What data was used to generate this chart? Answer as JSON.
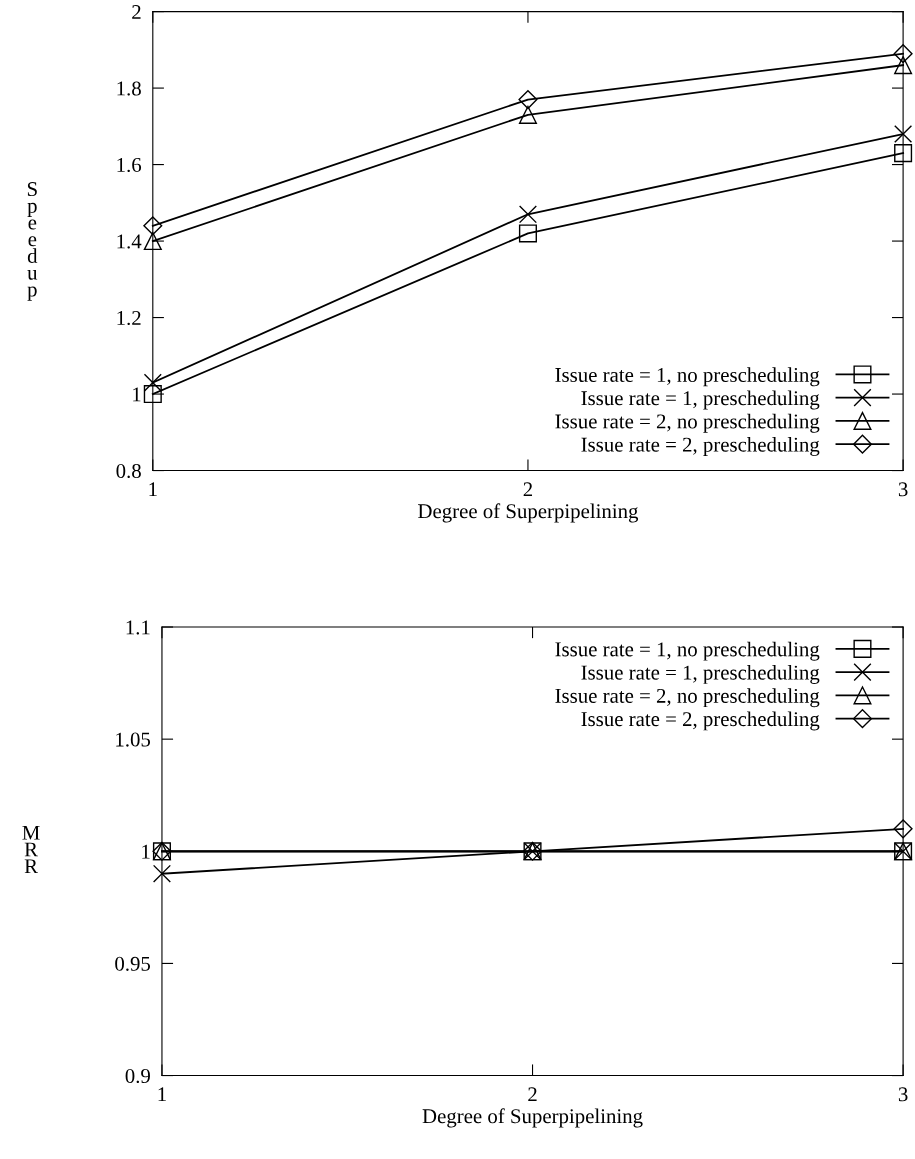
{
  "chart_data": [
    {
      "type": "line",
      "xlabel": "Degree of Superpipelining",
      "ylabel": "Speedup",
      "x": [
        1,
        2,
        3
      ],
      "xlim": [
        1,
        3
      ],
      "xticks": [
        1,
        2,
        3
      ],
      "ylim": [
        0.8,
        2
      ],
      "yticks": [
        0.8,
        1,
        1.2,
        1.4,
        1.6,
        1.8,
        2
      ],
      "grid": false,
      "legend": "bottom right",
      "series": [
        {
          "name": "Issue rate = 1, no prescheduling",
          "color": "#000000",
          "marker": "square",
          "values": [
            1.0,
            1.42,
            1.63
          ]
        },
        {
          "name": "Issue rate = 1, prescheduling",
          "color": "#000000",
          "marker": "cross",
          "values": [
            1.03,
            1.47,
            1.68
          ]
        },
        {
          "name": "Issue rate = 2, no prescheduling",
          "color": "#000000",
          "marker": "triangle",
          "values": [
            1.4,
            1.73,
            1.86
          ]
        },
        {
          "name": "Issue rate = 2, prescheduling",
          "color": "#000000",
          "marker": "diamond",
          "values": [
            1.44,
            1.77,
            1.89
          ]
        }
      ]
    },
    {
      "type": "line",
      "xlabel": "Degree of Superpipelining",
      "ylabel": "MRR",
      "x": [
        1,
        2,
        3
      ],
      "xlim": [
        1,
        3
      ],
      "xticks": [
        1,
        2,
        3
      ],
      "ylim": [
        0.9,
        1.1
      ],
      "yticks": [
        0.9,
        0.95,
        1,
        1.05,
        1.1
      ],
      "grid": false,
      "legend": "top right",
      "series": [
        {
          "name": "Issue rate = 1, no prescheduling",
          "color": "#000000",
          "marker": "square",
          "values": [
            1.0,
            1.0,
            1.0
          ]
        },
        {
          "name": "Issue rate = 1, prescheduling",
          "color": "#000000",
          "marker": "cross",
          "values": [
            0.99,
            1.0,
            1.0
          ]
        },
        {
          "name": "Issue rate = 2, no prescheduling",
          "color": "#000000",
          "marker": "triangle",
          "values": [
            1.0,
            1.0,
            1.0
          ]
        },
        {
          "name": "Issue rate = 2, prescheduling",
          "color": "#000000",
          "marker": "diamond",
          "values": [
            1.0,
            1.0,
            1.01
          ]
        }
      ]
    }
  ]
}
